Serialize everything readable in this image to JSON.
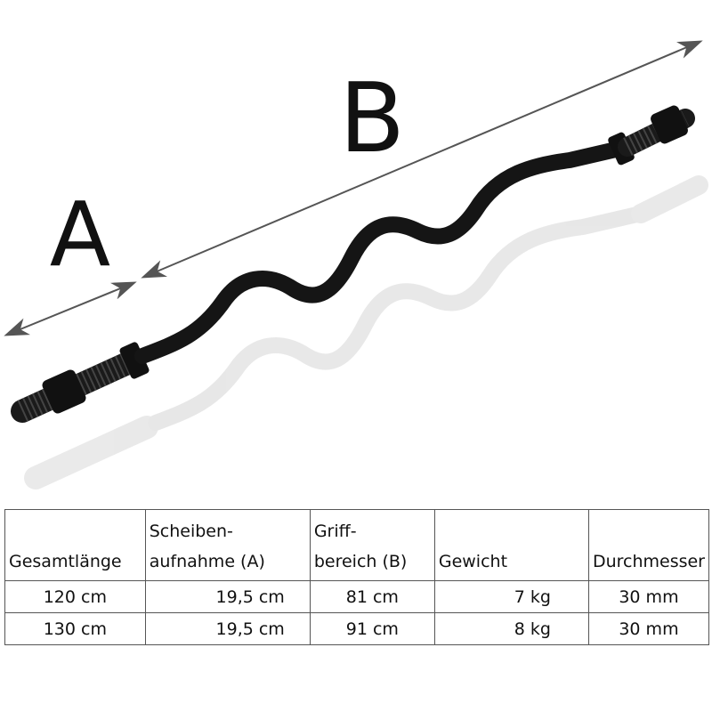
{
  "labels": {
    "a": "A",
    "b": "B"
  },
  "table": {
    "headers": [
      [
        "Gesamtlänge"
      ],
      [
        "Scheiben-",
        "aufnahme (A)"
      ],
      [
        "Griff-",
        "bereich (B)"
      ],
      [
        "Gewicht"
      ],
      [
        "Durchmesser"
      ]
    ],
    "rows": [
      [
        "120 cm",
        "19,5 cm",
        "81 cm",
        "7 kg",
        "30 mm"
      ],
      [
        "130 cm",
        "19,5 cm",
        "91 cm",
        "8 kg",
        "30 mm"
      ]
    ]
  }
}
